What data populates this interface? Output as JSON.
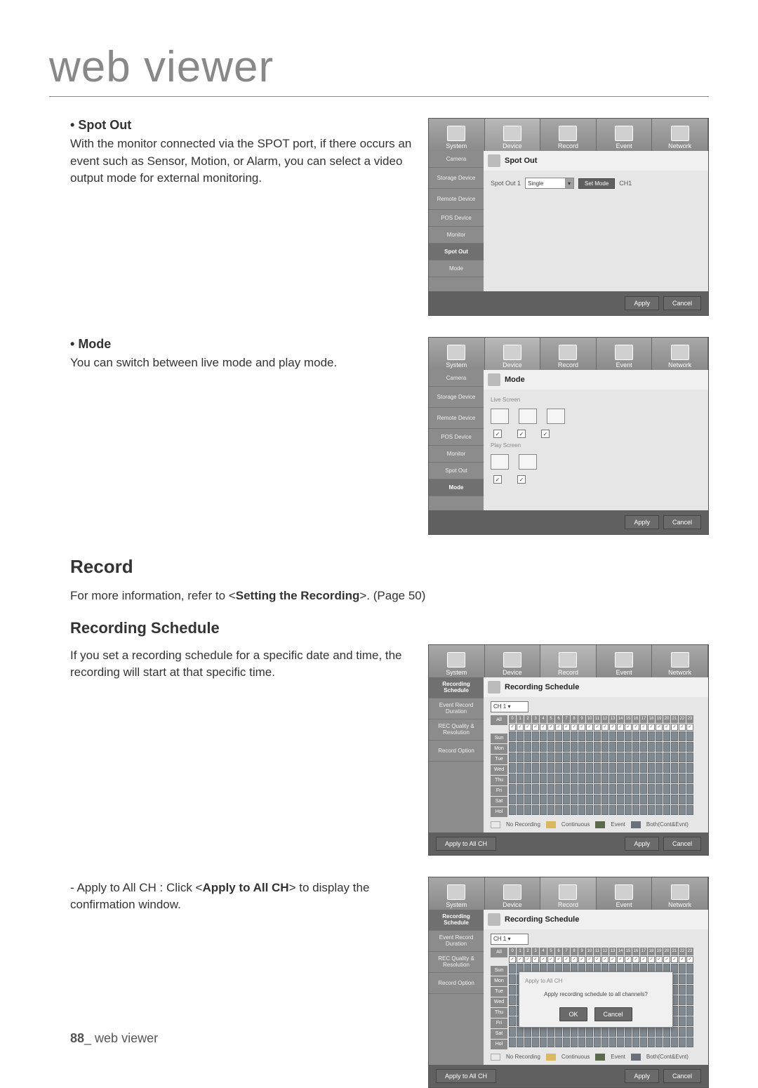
{
  "page_title": "web viewer",
  "spot_out": {
    "heading": "Spot Out",
    "body": "With the monitor connected via the SPOT port, if there occurs an event such as Sensor, Motion, or Alarm, you can select a video output mode for external monitoring."
  },
  "mode": {
    "heading": "Mode",
    "body": "You can switch between live mode and play mode."
  },
  "record": {
    "heading": "Record",
    "intro_pre": "For more information, refer to <",
    "intro_bold": "Setting the Recording",
    "intro_post": ">. (Page 50)"
  },
  "schedule": {
    "heading": "Recording Schedule",
    "body": "If you set a recording schedule for a specific date and time, the recording will start at that specific time."
  },
  "apply_all": {
    "pre": "Apply to All CH : Click <",
    "bold": "Apply to All CH",
    "post": "> to display the confirmation window."
  },
  "footer": {
    "page": "88",
    "section": "_ web viewer"
  },
  "shots": {
    "tabs": [
      "System",
      "Device",
      "Record",
      "Event",
      "Network"
    ],
    "side_device": [
      "Camera",
      "Storage Device",
      "Remote Device",
      "POS Device",
      "Monitor",
      "Spot Out",
      "Mode"
    ],
    "side_record": [
      "Recording Schedule",
      "Event Record Duration",
      "REC Quality & Resolution",
      "Record Option"
    ],
    "apply": "Apply",
    "cancel": "Cancel",
    "ok": "OK",
    "spot_out": {
      "title": "Spot Out",
      "label_spot1": "Spot Out 1",
      "dropdown": "Single",
      "set_mode": "Set Mode",
      "ch": "CH1"
    },
    "mode": {
      "title": "Mode",
      "live": "Live Screen",
      "play": "Play Screen"
    },
    "sched": {
      "title": "Recording Schedule",
      "channel_label": "CH 1",
      "days": [
        "All",
        "Sun",
        "Mon",
        "Tue",
        "Wed",
        "Thu",
        "Fri",
        "Sat",
        "Hol"
      ],
      "hours": [
        "0",
        "1",
        "2",
        "3",
        "4",
        "5",
        "6",
        "7",
        "8",
        "9",
        "10",
        "11",
        "12",
        "13",
        "14",
        "15",
        "16",
        "17",
        "18",
        "19",
        "20",
        "21",
        "22",
        "23"
      ],
      "legend": {
        "no_rec": "No Recording",
        "cont": "Continuous",
        "event": "Event",
        "both": "Both(Cont&Evnt)"
      },
      "legend_colors": {
        "no_rec": "#e8e8e8",
        "cont": "#d8b860",
        "event": "#5a6a4a",
        "both": "#6a707a"
      },
      "apply_all": "Apply to All CH"
    },
    "modal": {
      "title": "Apply to All CH",
      "msg": "Apply recording schedule to all channels?"
    }
  }
}
